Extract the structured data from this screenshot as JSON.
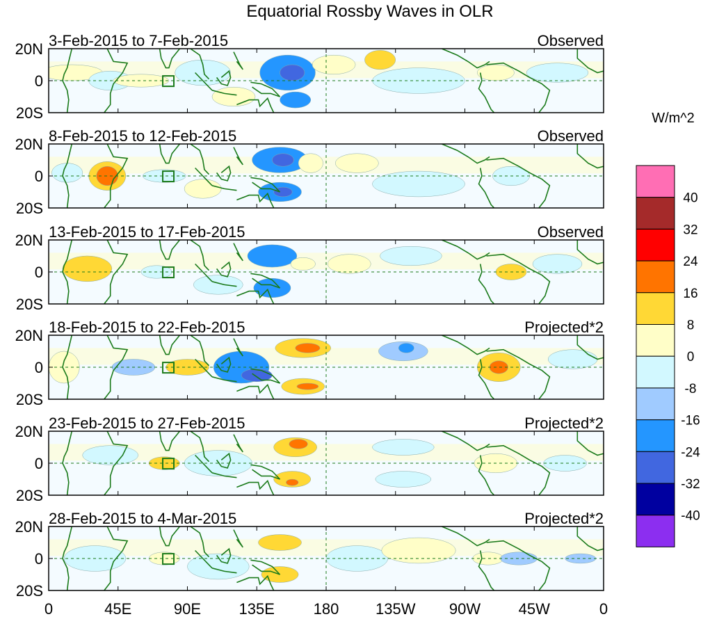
{
  "chart_data": {
    "type": "heatmap",
    "title": "Equatorial Rossby Waves in OLR",
    "units_label": "W/m^2",
    "x_tick_labels": [
      "0",
      "45E",
      "90E",
      "135E",
      "180",
      "135W",
      "90W",
      "45W",
      "0"
    ],
    "x_tick_lons": [
      0,
      45,
      90,
      135,
      180,
      225,
      270,
      315,
      360
    ],
    "y_tick_labels": [
      "20N",
      "0",
      "20S"
    ],
    "y_tick_lats": [
      20,
      0,
      -20
    ],
    "xlim": [
      0,
      360
    ],
    "ylim": [
      -20,
      20
    ],
    "colorbar": {
      "levels": [
        "40",
        "32",
        "24",
        "16",
        "8",
        "0",
        "-8",
        "-16",
        "-24",
        "-32",
        "-40"
      ],
      "colors": [
        "#ff6eb4",
        "#a52a2a",
        "#ff0000",
        "#ff7400",
        "#ffd835",
        "#fffec8",
        "#d2f8ff",
        "#a0cbff",
        "#2496ff",
        "#4167e0",
        "#0000a0",
        "#8c2ef0"
      ]
    },
    "panels": [
      {
        "period": "3-Feb-2015 to 7-Feb-2015",
        "label": "Observed",
        "anomalies": [
          {
            "lon": 15,
            "lat": 5,
            "rlon": 20,
            "rlat": 5,
            "value": 4
          },
          {
            "lon": 40,
            "lat": 0,
            "rlon": 14,
            "rlat": 6,
            "value": -6
          },
          {
            "lon": 60,
            "lat": 0,
            "rlon": 18,
            "rlat": 4,
            "value": 4
          },
          {
            "lon": 100,
            "lat": 5,
            "rlon": 18,
            "rlat": 8,
            "value": -6
          },
          {
            "lon": 120,
            "lat": -10,
            "rlon": 14,
            "rlat": 6,
            "value": 6
          },
          {
            "lon": 155,
            "lat": 5,
            "rlon": 18,
            "rlat": 11,
            "value": -20
          },
          {
            "lon": 158,
            "lat": 5,
            "rlon": 8,
            "rlat": 5,
            "value": -32
          },
          {
            "lon": 160,
            "lat": -12,
            "rlon": 10,
            "rlat": 5,
            "value": -24
          },
          {
            "lon": 185,
            "lat": 10,
            "rlon": 14,
            "rlat": 6,
            "value": 4
          },
          {
            "lon": 215,
            "lat": 13,
            "rlon": 10,
            "rlat": 6,
            "value": 10
          },
          {
            "lon": 240,
            "lat": 0,
            "rlon": 30,
            "rlat": 8,
            "value": -4
          },
          {
            "lon": 290,
            "lat": 5,
            "rlon": 12,
            "rlat": 5,
            "value": 6
          },
          {
            "lon": 330,
            "lat": 5,
            "rlon": 20,
            "rlat": 6,
            "value": -6
          }
        ]
      },
      {
        "period": "8-Feb-2015 to 12-Feb-2015",
        "label": "Observed",
        "anomalies": [
          {
            "lon": 12,
            "lat": 2,
            "rlon": 10,
            "rlat": 6,
            "value": -6
          },
          {
            "lon": 38,
            "lat": 0,
            "rlon": 12,
            "rlat": 9,
            "value": 10
          },
          {
            "lon": 38,
            "lat": 0,
            "rlon": 7,
            "rlat": 6,
            "value": 20
          },
          {
            "lon": 75,
            "lat": 0,
            "rlon": 14,
            "rlat": 4,
            "value": -6
          },
          {
            "lon": 100,
            "lat": -8,
            "rlon": 12,
            "rlat": 6,
            "value": 6
          },
          {
            "lon": 150,
            "lat": 10,
            "rlon": 18,
            "rlat": 8,
            "value": -20
          },
          {
            "lon": 152,
            "lat": 10,
            "rlon": 7,
            "rlat": 4,
            "value": -32
          },
          {
            "lon": 150,
            "lat": -10,
            "rlon": 14,
            "rlat": 6,
            "value": -20
          },
          {
            "lon": 152,
            "lat": -10,
            "rlon": 6,
            "rlat": 3,
            "value": -32
          },
          {
            "lon": 170,
            "lat": 8,
            "rlon": 8,
            "rlat": 6,
            "value": 6
          },
          {
            "lon": 200,
            "lat": 8,
            "rlon": 14,
            "rlat": 6,
            "value": 6
          },
          {
            "lon": 240,
            "lat": -5,
            "rlon": 30,
            "rlat": 8,
            "value": -4
          },
          {
            "lon": 300,
            "lat": 0,
            "rlon": 12,
            "rlat": 6,
            "value": -6
          }
        ]
      },
      {
        "period": "13-Feb-2015 to 17-Feb-2015",
        "label": "Observed",
        "anomalies": [
          {
            "lon": 25,
            "lat": 2,
            "rlon": 16,
            "rlat": 8,
            "value": 8
          },
          {
            "lon": 70,
            "lat": 0,
            "rlon": 10,
            "rlat": 4,
            "value": -6
          },
          {
            "lon": 110,
            "lat": -8,
            "rlon": 16,
            "rlat": 6,
            "value": -6
          },
          {
            "lon": 145,
            "lat": 10,
            "rlon": 16,
            "rlat": 7,
            "value": -18
          },
          {
            "lon": 145,
            "lat": -10,
            "rlon": 12,
            "rlat": 6,
            "value": -18
          },
          {
            "lon": 165,
            "lat": 5,
            "rlon": 8,
            "rlat": 4,
            "value": 6
          },
          {
            "lon": 195,
            "lat": 5,
            "rlon": 14,
            "rlat": 6,
            "value": 6
          },
          {
            "lon": 235,
            "lat": 10,
            "rlon": 20,
            "rlat": 6,
            "value": -6
          },
          {
            "lon": 300,
            "lat": 0,
            "rlon": 10,
            "rlat": 5,
            "value": 8
          },
          {
            "lon": 330,
            "lat": 5,
            "rlon": 16,
            "rlat": 6,
            "value": -4
          }
        ]
      },
      {
        "period": "18-Feb-2015 to 22-Feb-2015",
        "label": "Projected*2",
        "anomalies": [
          {
            "lon": 10,
            "lat": 0,
            "rlon": 10,
            "rlat": 10,
            "value": 6
          },
          {
            "lon": 55,
            "lat": 0,
            "rlon": 14,
            "rlat": 5,
            "value": -10
          },
          {
            "lon": 90,
            "lat": 0,
            "rlon": 14,
            "rlat": 5,
            "value": 8
          },
          {
            "lon": 125,
            "lat": 0,
            "rlon": 18,
            "rlat": 10,
            "value": -18
          },
          {
            "lon": 135,
            "lat": -5,
            "rlon": 10,
            "rlat": 4,
            "value": -26
          },
          {
            "lon": 165,
            "lat": 12,
            "rlon": 18,
            "rlat": 6,
            "value": 12
          },
          {
            "lon": 168,
            "lat": 12,
            "rlon": 8,
            "rlat": 3,
            "value": 20
          },
          {
            "lon": 165,
            "lat": -12,
            "rlon": 14,
            "rlat": 5,
            "value": 12
          },
          {
            "lon": 168,
            "lat": -12,
            "rlon": 7,
            "rlat": 2,
            "value": 20
          },
          {
            "lon": 230,
            "lat": 10,
            "rlon": 16,
            "rlat": 6,
            "value": -14
          },
          {
            "lon": 232,
            "lat": 12,
            "rlon": 5,
            "rlat": 3,
            "value": -24
          },
          {
            "lon": 292,
            "lat": 0,
            "rlon": 14,
            "rlat": 9,
            "value": 12
          },
          {
            "lon": 292,
            "lat": 0,
            "rlon": 6,
            "rlat": 4,
            "value": 20
          },
          {
            "lon": 340,
            "lat": 5,
            "rlon": 16,
            "rlat": 6,
            "value": -6
          }
        ]
      },
      {
        "period": "23-Feb-2015 to 27-Feb-2015",
        "label": "Projected*2",
        "anomalies": [
          {
            "lon": 40,
            "lat": 5,
            "rlon": 18,
            "rlat": 6,
            "value": -6
          },
          {
            "lon": 75,
            "lat": 0,
            "rlon": 10,
            "rlat": 4,
            "value": 8
          },
          {
            "lon": 110,
            "lat": 0,
            "rlon": 22,
            "rlat": 8,
            "value": -8
          },
          {
            "lon": 160,
            "lat": 10,
            "rlon": 14,
            "rlat": 6,
            "value": 10
          },
          {
            "lon": 162,
            "lat": 12,
            "rlon": 6,
            "rlat": 3,
            "value": 18
          },
          {
            "lon": 158,
            "lat": -10,
            "rlon": 12,
            "rlat": 5,
            "value": 10
          },
          {
            "lon": 158,
            "lat": -12,
            "rlon": 4,
            "rlat": 2,
            "value": 18
          },
          {
            "lon": 230,
            "lat": 10,
            "rlon": 20,
            "rlat": 5,
            "value": -8
          },
          {
            "lon": 230,
            "lat": -10,
            "rlon": 18,
            "rlat": 5,
            "value": -8
          },
          {
            "lon": 290,
            "lat": 0,
            "rlon": 14,
            "rlat": 6,
            "value": 6
          },
          {
            "lon": 335,
            "lat": 0,
            "rlon": 14,
            "rlat": 5,
            "value": -4
          }
        ]
      },
      {
        "period": "28-Feb-2015 to 4-Mar-2015",
        "label": "Projected*2",
        "anomalies": [
          {
            "lon": 30,
            "lat": 0,
            "rlon": 20,
            "rlat": 8,
            "value": -4
          },
          {
            "lon": 75,
            "lat": 0,
            "rlon": 10,
            "rlat": 4,
            "value": 6
          },
          {
            "lon": 110,
            "lat": -5,
            "rlon": 20,
            "rlat": 8,
            "value": -6
          },
          {
            "lon": 150,
            "lat": 10,
            "rlon": 14,
            "rlat": 5,
            "value": 10
          },
          {
            "lon": 150,
            "lat": -10,
            "rlon": 12,
            "rlat": 5,
            "value": 8
          },
          {
            "lon": 200,
            "lat": 0,
            "rlon": 20,
            "rlat": 8,
            "value": -4
          },
          {
            "lon": 240,
            "lat": 5,
            "rlon": 24,
            "rlat": 8,
            "value": 4
          },
          {
            "lon": 285,
            "lat": 0,
            "rlon": 10,
            "rlat": 4,
            "value": 6
          },
          {
            "lon": 305,
            "lat": 0,
            "rlon": 12,
            "rlat": 4,
            "value": -10
          },
          {
            "lon": 345,
            "lat": 0,
            "rlon": 10,
            "rlat": 3,
            "value": -10
          }
        ]
      }
    ]
  }
}
